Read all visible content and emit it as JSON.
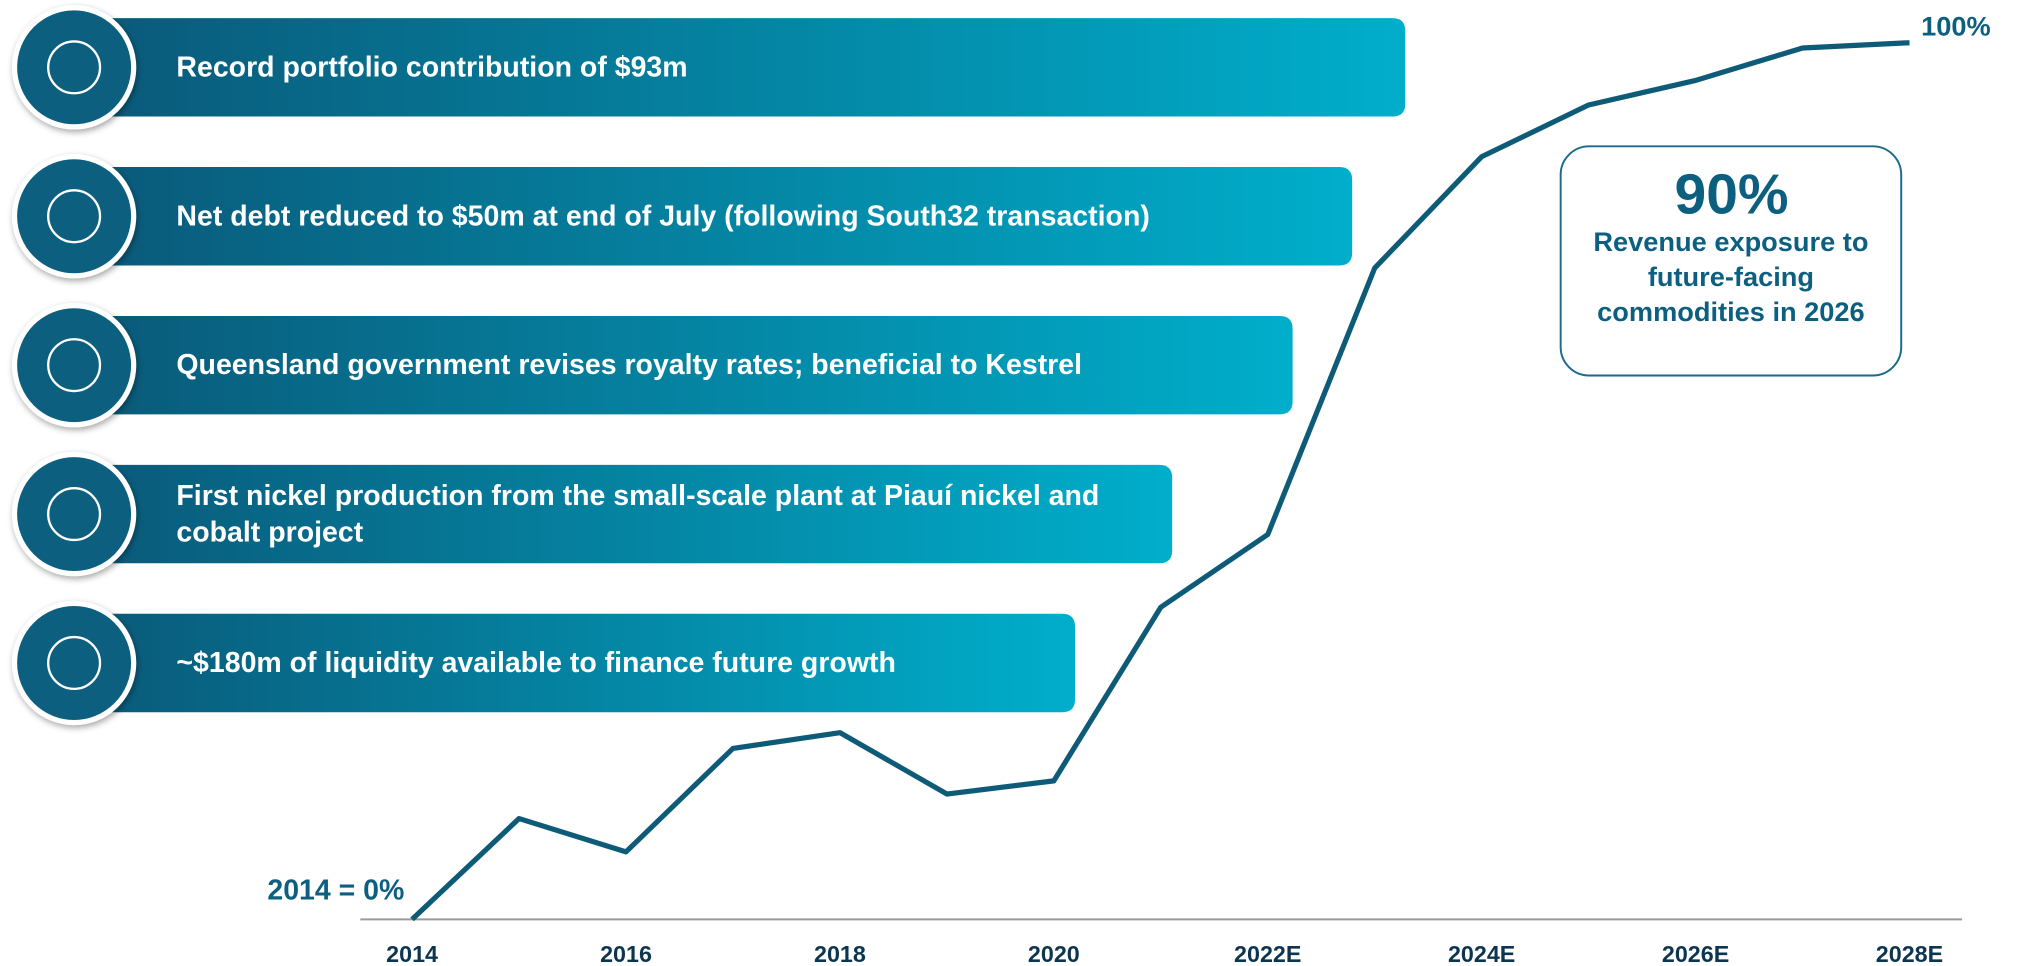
{
  "items": [
    "Record portfolio contribution of $93m",
    "Net debt reduced to $50m at end of July (following South32 transaction)",
    "Queensland government revises royalty rates; beneficial to Kestrel",
    "First nickel production from the small-scale plant at Piauí nickel and cobalt project",
    "~$180m of liquidity available to finance future growth"
  ],
  "callout": {
    "value": "90%",
    "text": "Revenue exposure to future-facing commodities in 2026"
  },
  "chart_data": {
    "type": "line",
    "categories": [
      "2014",
      null,
      "2016",
      null,
      "2018",
      null,
      "2020",
      null,
      "2022E",
      null,
      "2024E",
      null,
      "2026E",
      null,
      "2028E"
    ],
    "values": [
      0,
      11.5,
      7.7,
      19.5,
      21.3,
      14.3,
      15.8,
      35.6,
      43.9,
      74.3,
      87.0,
      92.9,
      95.7,
      99.4,
      100
    ],
    "value_labels": [
      "2014 = 0%",
      null,
      null,
      null,
      null,
      null,
      null,
      null,
      null,
      null,
      null,
      null,
      null,
      null,
      "100%"
    ],
    "color": "#0e5b78",
    "ylim": [
      0,
      100
    ]
  }
}
